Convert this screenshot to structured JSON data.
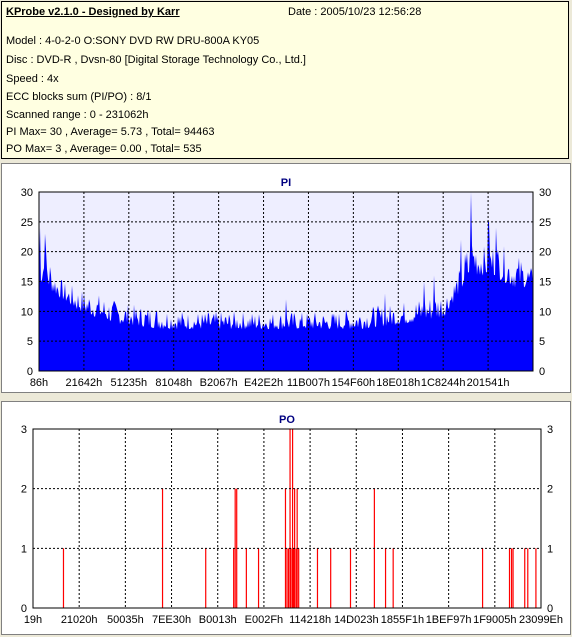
{
  "info": {
    "title": "KProbe v2.1.0 - Designed by Karr",
    "date": "Date : 2005/10/23 12:56:28",
    "model": "Model : 4-0-2-0 O:SONY    DVD RW DRU-800A  KY05",
    "disc": "Disc : DVD-R , Dvsn-80 [Digital Storage Technology Co., Ltd.]",
    "speed": "Speed : 4x",
    "ecc": "ECC blocks sum (PI/PO) : 8/1",
    "range": "Scanned range : 0 - 231062h",
    "pi_stats": "PI Max= 30 , Average= 5.73 , Total= 94463",
    "po_stats": "PO Max= 3 , Average= 0.00 , Total= 535"
  },
  "colors": {
    "pi": "#0000ff",
    "po": "#ff0000",
    "title": "#000080",
    "background": "#ffffff",
    "info_bg": "#ffffe1"
  },
  "chart_data": [
    {
      "type": "area",
      "title": "PI",
      "ylim": [
        0,
        30
      ],
      "yticks": [
        0,
        5,
        10,
        15,
        20,
        25,
        30
      ],
      "xticklabels": [
        "86h",
        "21642h",
        "51235h",
        "81048h",
        "B2067h",
        "E42E2h",
        "11B007h",
        "154F60h",
        "18E018h",
        "1C8244h",
        "201541h"
      ],
      "x_range": [
        0,
        231062
      ],
      "grid": "dashed",
      "envelope": [
        [
          0,
          19
        ],
        [
          0.01,
          23
        ],
        [
          0.02,
          20
        ],
        [
          0.03,
          17
        ],
        [
          0.05,
          15
        ],
        [
          0.08,
          14
        ],
        [
          0.12,
          13
        ],
        [
          0.15,
          12
        ],
        [
          0.2,
          11
        ],
        [
          0.25,
          11
        ],
        [
          0.3,
          10
        ],
        [
          0.35,
          10
        ],
        [
          0.4,
          10
        ],
        [
          0.45,
          10
        ],
        [
          0.5,
          10
        ],
        [
          0.55,
          10
        ],
        [
          0.6,
          10
        ],
        [
          0.65,
          11
        ],
        [
          0.7,
          11
        ],
        [
          0.75,
          12
        ],
        [
          0.8,
          13
        ],
        [
          0.83,
          14
        ],
        [
          0.85,
          17
        ],
        [
          0.86,
          20
        ],
        [
          0.87,
          22
        ],
        [
          0.88,
          24
        ],
        [
          0.9,
          21
        ],
        [
          0.92,
          22
        ],
        [
          0.94,
          21
        ],
        [
          0.96,
          20
        ],
        [
          0.98,
          19
        ],
        [
          1.0,
          17
        ]
      ],
      "floor": [
        [
          0,
          15
        ],
        [
          0.03,
          13
        ],
        [
          0.08,
          10
        ],
        [
          0.15,
          8
        ],
        [
          0.25,
          7
        ],
        [
          0.35,
          7
        ],
        [
          0.5,
          7
        ],
        [
          0.65,
          7
        ],
        [
          0.75,
          8
        ],
        [
          0.82,
          9
        ],
        [
          0.85,
          13
        ],
        [
          0.88,
          16
        ],
        [
          0.92,
          16
        ],
        [
          0.96,
          14
        ],
        [
          1.0,
          14
        ]
      ],
      "peaks": [
        [
          0.002,
          24
        ],
        [
          0.012,
          23
        ],
        [
          0.5,
          12
        ],
        [
          0.7,
          13
        ],
        [
          0.78,
          15
        ],
        [
          0.8,
          16
        ],
        [
          0.855,
          22
        ],
        [
          0.875,
          30
        ],
        [
          0.91,
          25
        ],
        [
          0.925,
          24
        ]
      ]
    },
    {
      "type": "bar",
      "title": "PO",
      "ylim": [
        0,
        3
      ],
      "yticks": [
        0,
        1,
        2,
        3
      ],
      "xticklabels": [
        "19h",
        "21020h",
        "50035h",
        "7EE30h",
        "B0013h",
        "E002Fh",
        "114218h",
        "14D023h",
        "1855F1h",
        "1BEF97h",
        "1F9005h",
        "23099Eh"
      ],
      "x_range": [
        0,
        231062
      ],
      "grid": "dashed",
      "spikes": [
        [
          0.06,
          1
        ],
        [
          0.255,
          2
        ],
        [
          0.34,
          1
        ],
        [
          0.395,
          1
        ],
        [
          0.398,
          2
        ],
        [
          0.401,
          2
        ],
        [
          0.42,
          1
        ],
        [
          0.444,
          1
        ],
        [
          0.497,
          2
        ],
        [
          0.5,
          1
        ],
        [
          0.503,
          1
        ],
        [
          0.506,
          3
        ],
        [
          0.508,
          1
        ],
        [
          0.511,
          3
        ],
        [
          0.513,
          1
        ],
        [
          0.515,
          2
        ],
        [
          0.518,
          1
        ],
        [
          0.52,
          2
        ],
        [
          0.523,
          1
        ],
        [
          0.56,
          1
        ],
        [
          0.586,
          1
        ],
        [
          0.625,
          1
        ],
        [
          0.672,
          2
        ],
        [
          0.694,
          1
        ],
        [
          0.709,
          1
        ],
        [
          0.885,
          1
        ],
        [
          0.938,
          1
        ],
        [
          0.942,
          1
        ],
        [
          0.945,
          1
        ],
        [
          0.968,
          1
        ],
        [
          0.974,
          1
        ],
        [
          0.99,
          1
        ]
      ]
    }
  ]
}
